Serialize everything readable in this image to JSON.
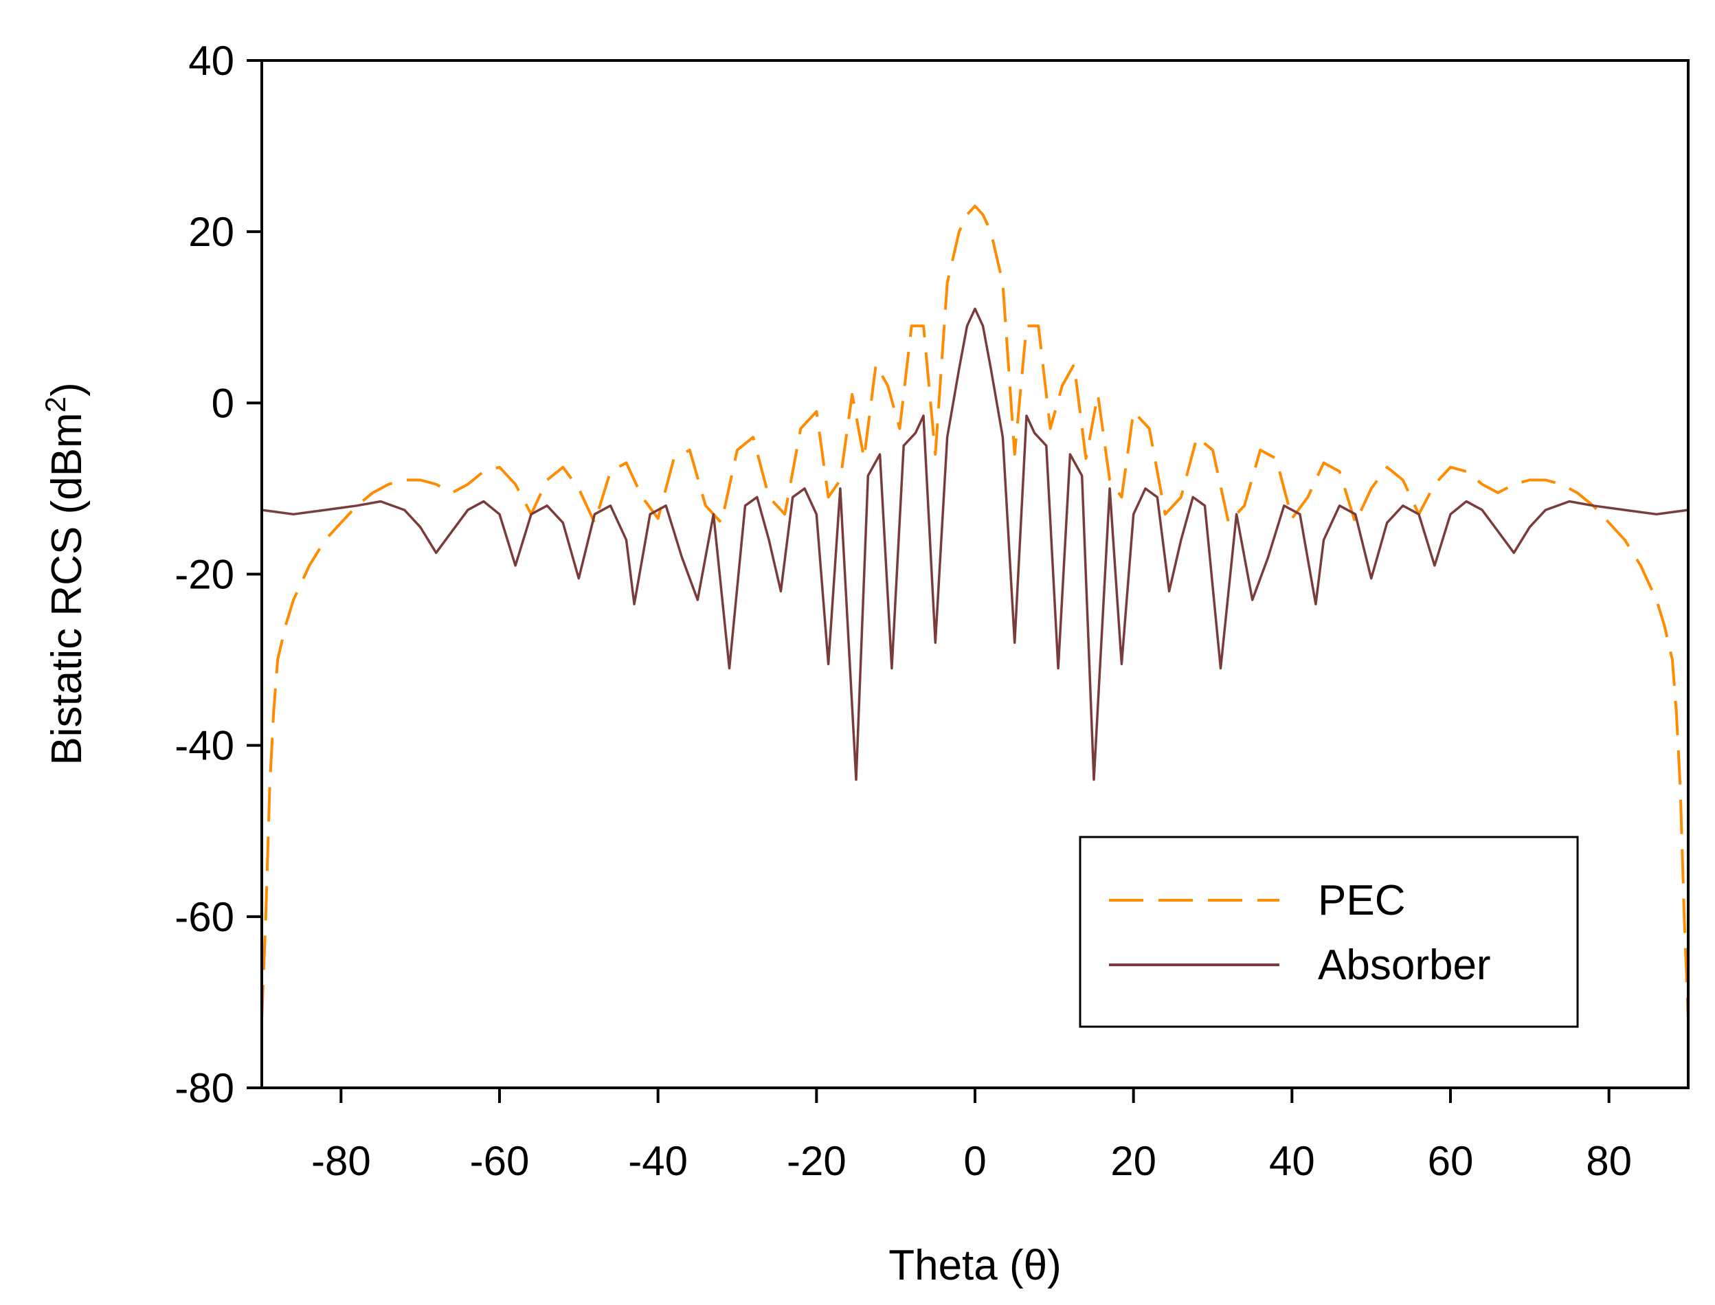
{
  "chart_data": {
    "type": "line",
    "title": "",
    "xlabel": "Theta (θ)",
    "ylabel": "Bistatic RCS (dBm",
    "ylabel_superscript": "2",
    "ylabel_close": ")",
    "xlim": [
      -90,
      90
    ],
    "ylim": [
      -80,
      40
    ],
    "xticks": [
      -80,
      -60,
      -40,
      -20,
      0,
      20,
      40,
      60,
      80
    ],
    "xtick_labels": [
      "-80",
      "-60",
      "-40",
      "-20",
      "0",
      "20",
      "40",
      "60",
      "80"
    ],
    "yticks": [
      40,
      20,
      0,
      -20,
      -40,
      -60,
      -80
    ],
    "ytick_labels": [
      "40",
      "20",
      "0",
      "-20",
      "-40",
      "-60",
      "-80"
    ],
    "grid": false,
    "legend_position": "bottom-right",
    "series": [
      {
        "name": "PEC",
        "color": "#ff8c00",
        "dash": "dashed",
        "x": [
          -90,
          -89.5,
          -89,
          -88.5,
          -88,
          -87,
          -86,
          -85,
          -84,
          -82,
          -80,
          -78,
          -76,
          -74,
          -72,
          -70,
          -68,
          -66,
          -64,
          -62,
          -60,
          -58,
          -56,
          -54,
          -52,
          -50,
          -48,
          -46,
          -44,
          -42,
          -40,
          -38,
          -36,
          -34,
          -32,
          -30,
          -28,
          -26,
          -24,
          -22,
          -20,
          -18.5,
          -17,
          -15.5,
          -14,
          -12.5,
          -11,
          -9.5,
          -8,
          -6.5,
          -5,
          -3.5,
          -2,
          -1,
          0,
          1,
          2,
          3.5,
          5,
          6.5,
          8,
          9.5,
          11,
          12.5,
          14,
          15.5,
          17,
          18.5,
          20,
          22,
          24,
          26,
          28,
          30,
          32,
          34,
          36,
          38,
          40,
          42,
          44,
          46,
          48,
          50,
          52,
          54,
          56,
          58,
          60,
          62,
          64,
          66,
          68,
          70,
          72,
          74,
          76,
          78,
          80,
          82,
          84,
          85,
          86,
          87,
          88,
          88.5,
          89,
          89.5,
          90
        ],
        "y": [
          -72,
          -60,
          -45,
          -36,
          -30,
          -26,
          -23,
          -21,
          -19,
          -16,
          -14,
          -12,
          -10.5,
          -9.5,
          -9,
          -9,
          -9.5,
          -10.5,
          -9.5,
          -8,
          -7.5,
          -9.5,
          -13,
          -9,
          -7.5,
          -10,
          -14,
          -8,
          -7,
          -11,
          -13.5,
          -6.5,
          -5.5,
          -12,
          -14,
          -5.5,
          -4,
          -11,
          -13,
          -3,
          -1,
          -11,
          -9,
          1,
          -6.5,
          4.5,
          2,
          -3,
          9,
          9,
          -6,
          14,
          20,
          22,
          23,
          22,
          20,
          14,
          -6,
          9,
          9,
          -3,
          2,
          4.5,
          -6.5,
          1,
          -9,
          -11,
          -1,
          -3,
          -13,
          -11,
          -4,
          -5.5,
          -14,
          -12,
          -5.5,
          -6.5,
          -13.5,
          -11,
          -7,
          -8,
          -14,
          -10,
          -7.5,
          -9,
          -13,
          -9.5,
          -7.5,
          -8,
          -9.5,
          -10.5,
          -9.5,
          -9,
          -9,
          -9.5,
          -10.5,
          -12,
          -14,
          -16,
          -19,
          -21,
          -23,
          -26,
          -30,
          -36,
          -45,
          -60,
          -72
        ]
      },
      {
        "name": "Absorber",
        "color": "#7a3b3b",
        "dash": "solid",
        "x": [
          -90,
          -86,
          -82,
          -78,
          -75,
          -72,
          -70,
          -68,
          -66,
          -64,
          -62,
          -60,
          -58,
          -56,
          -54,
          -52,
          -50,
          -48,
          -46,
          -44,
          -43,
          -41,
          -39,
          -37,
          -35,
          -33,
          -31,
          -29,
          -27.5,
          -26,
          -24.5,
          -23,
          -21.5,
          -20,
          -18.5,
          -17,
          -15,
          -13.5,
          -12,
          -10.5,
          -9,
          -7.5,
          -6.5,
          -5,
          -3.5,
          -2,
          -1,
          0,
          1,
          2,
          3.5,
          5,
          6.5,
          7.5,
          9,
          10.5,
          12,
          13.5,
          15,
          17,
          18.5,
          20,
          21.5,
          23,
          24.5,
          26,
          27.5,
          29,
          31,
          33,
          35,
          37,
          39,
          41,
          43,
          44,
          46,
          48,
          50,
          52,
          54,
          56,
          58,
          60,
          62,
          64,
          66,
          68,
          70,
          72,
          75,
          78,
          82,
          86,
          90
        ],
        "y": [
          -12.5,
          -13,
          -12.5,
          -12,
          -11.5,
          -12.5,
          -14.5,
          -17.5,
          -15,
          -12.5,
          -11.5,
          -13,
          -19,
          -13,
          -12,
          -14,
          -20.5,
          -13,
          -12,
          -16,
          -23.5,
          -13,
          -12,
          -18,
          -23,
          -13,
          -31,
          -12,
          -11,
          -16,
          -22,
          -11,
          -10,
          -13,
          -30.5,
          -10,
          -44,
          -8.5,
          -6,
          -31,
          -5,
          -3.5,
          -1.5,
          -28,
          -4,
          4,
          9,
          11,
          9,
          4,
          -4,
          -28,
          -1.5,
          -3.5,
          -5,
          -31,
          -6,
          -8.5,
          -44,
          -10,
          -30.5,
          -13,
          -10,
          -11,
          -22,
          -16,
          -11,
          -12,
          -31,
          -13,
          -23,
          -18,
          -12,
          -13,
          -23.5,
          -16,
          -12,
          -13,
          -20.5,
          -14,
          -12,
          -13,
          -19,
          -13,
          -11.5,
          -12.5,
          -15,
          -17.5,
          -14.5,
          -12.5,
          -11.5,
          -12,
          -12.5,
          -13,
          -12.5
        ]
      }
    ]
  }
}
